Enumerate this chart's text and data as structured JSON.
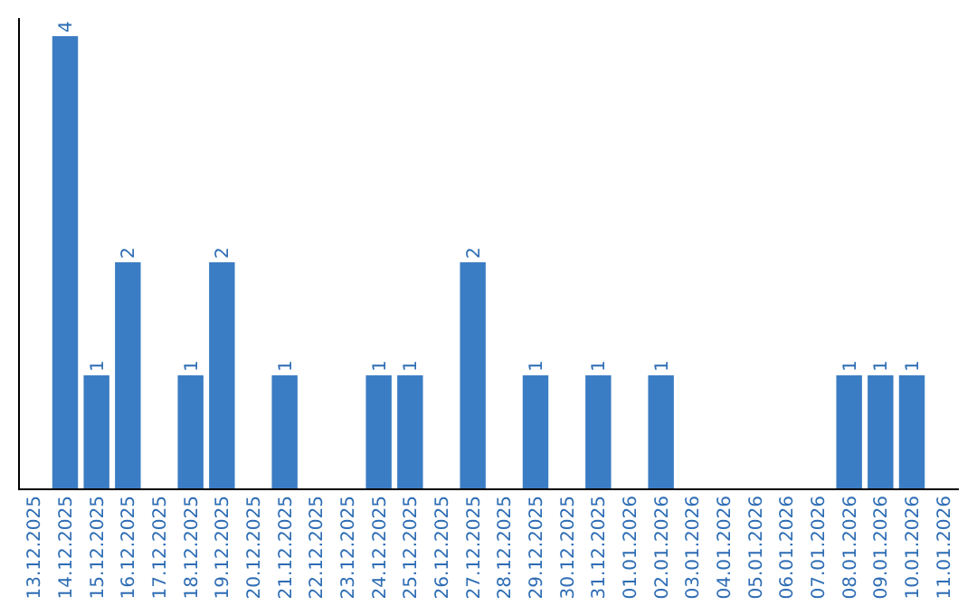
{
  "chart_data": {
    "type": "bar",
    "categories": [
      "13.12.2025",
      "14.12.2025",
      "15.12.2025",
      "16.12.2025",
      "17.12.2025",
      "18.12.2025",
      "19.12.2025",
      "20.12.2025",
      "21.12.2025",
      "22.12.2025",
      "23.12.2025",
      "24.12.2025",
      "25.12.2025",
      "26.12.2025",
      "27.12.2025",
      "28.12.2025",
      "29.12.2025",
      "30.12.2025",
      "31.12.2025",
      "01.01.2026",
      "02.01.2026",
      "03.01.2026",
      "04.01.2026",
      "05.01.2026",
      "06.01.2026",
      "07.01.2026",
      "08.01.2026",
      "09.01.2026",
      "10.01.2026",
      "11.01.2026"
    ],
    "values": [
      0,
      4,
      1,
      2,
      0,
      1,
      2,
      0,
      1,
      0,
      0,
      1,
      1,
      0,
      2,
      0,
      1,
      0,
      1,
      0,
      1,
      0,
      0,
      0,
      0,
      0,
      1,
      1,
      1,
      0
    ],
    "value_labels": [
      null,
      "4",
      "1",
      "2",
      null,
      "1",
      "2",
      null,
      "1",
      null,
      null,
      "1",
      "1",
      null,
      "2",
      null,
      "1",
      null,
      "1",
      null,
      "1",
      null,
      null,
      null,
      null,
      null,
      "1",
      "1",
      "1",
      null
    ],
    "color": "#3b7dc4",
    "tick_labels": "x"
  }
}
